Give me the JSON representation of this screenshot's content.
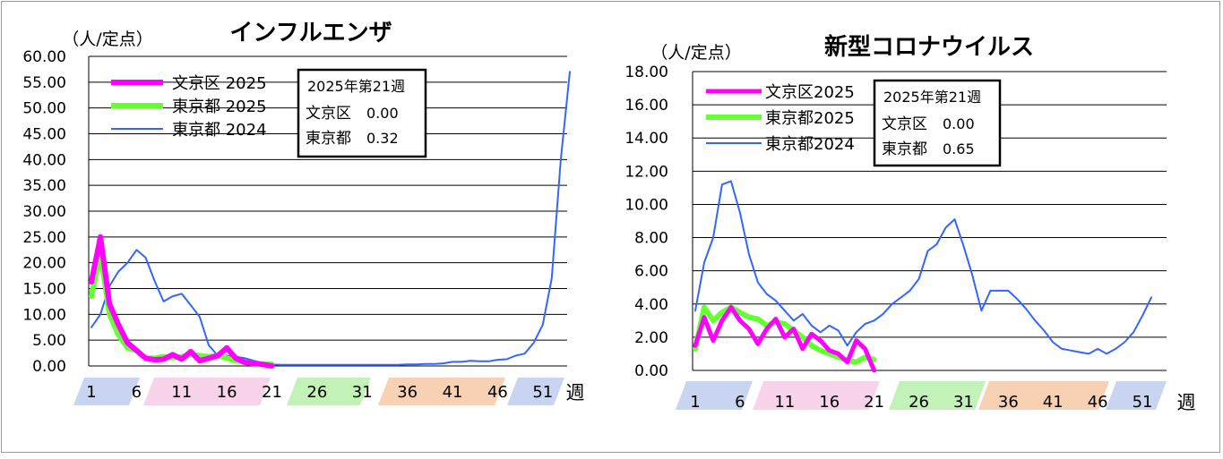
{
  "chart_data": [
    {
      "type": "line",
      "title": "インフルエンザ",
      "ylabel": "（人/定点）",
      "xlabel": "週",
      "ylim": [
        0,
        60
      ],
      "yticks": [
        "0.00",
        "5.00",
        "10.00",
        "15.00",
        "20.00",
        "25.00",
        "30.00",
        "35.00",
        "40.00",
        "45.00",
        "50.00",
        "55.00",
        "60.00"
      ],
      "xticks": [
        "1",
        "6",
        "11",
        "16",
        "21",
        "26",
        "31",
        "36",
        "41",
        "46",
        "51"
      ],
      "info_box": [
        "2025年第21週",
        "文京区",
        "0.00",
        "東京都",
        "0.32"
      ],
      "legend_position": "top-left",
      "colors": {
        "bunkyo": "#ff00ff",
        "tokyo2025": "#66ff33",
        "tokyo2024": "#3366ff"
      },
      "series": [
        {
          "name": "文京区 2025",
          "color": "#ff00ff",
          "values": [
            16.3,
            25.0,
            12.0,
            8.0,
            4.5,
            3.0,
            1.5,
            1.2,
            1.3,
            2.2,
            1.3,
            2.8,
            1.0,
            1.5,
            2.0,
            3.5,
            1.5,
            0.7,
            0.5,
            0.3,
            0.0
          ]
        },
        {
          "name": "東京都 2025",
          "color": "#66ff33",
          "values": [
            13.5,
            22.0,
            10.0,
            6.0,
            3.5,
            3.0,
            1.5,
            1.5,
            1.8,
            1.6,
            1.8,
            2.2,
            2.0,
            1.8,
            2.0,
            1.5,
            1.0,
            0.7,
            0.5,
            0.4,
            0.32
          ]
        },
        {
          "name": "東京都 2024",
          "color": "#3366ff",
          "values": [
            7.5,
            10.0,
            15.5,
            18.3,
            20.0,
            22.5,
            21.0,
            16.5,
            12.5,
            13.5,
            14.0,
            11.8,
            9.5,
            4.0,
            2.0,
            2.0,
            1.8,
            1.5,
            1.0,
            0.6,
            0.3,
            0.2,
            0.2,
            0.2,
            0.2,
            0.2,
            0.2,
            0.2,
            0.2,
            0.2,
            0.2,
            0.2,
            0.2,
            0.2,
            0.2,
            0.3,
            0.3,
            0.4,
            0.4,
            0.5,
            0.8,
            0.8,
            1.0,
            0.9,
            0.9,
            1.2,
            1.3,
            2.0,
            2.4,
            4.5,
            8.0,
            17.0,
            40.0,
            57.0
          ]
        }
      ]
    },
    {
      "type": "line",
      "title": "新型コロナウイルス",
      "ylabel": "（人/定点）",
      "xlabel": "週",
      "ylim": [
        0,
        18
      ],
      "yticks": [
        "0.00",
        "2.00",
        "4.00",
        "6.00",
        "8.00",
        "10.00",
        "12.00",
        "14.00",
        "16.00",
        "18.00"
      ],
      "xticks": [
        "1",
        "6",
        "11",
        "16",
        "21",
        "26",
        "31",
        "36",
        "41",
        "46",
        "51"
      ],
      "info_box": [
        "2025年第21週",
        "文京区",
        "0.00",
        "東京都",
        "0.65"
      ],
      "legend_position": "top-left",
      "colors": {
        "bunkyo": "#ff00ff",
        "tokyo2025": "#66ff33",
        "tokyo2024": "#3366ff"
      },
      "series": [
        {
          "name": "文京区2025",
          "color": "#ff00ff",
          "values": [
            1.5,
            3.2,
            1.8,
            3.0,
            3.8,
            3.0,
            2.5,
            1.6,
            2.5,
            3.1,
            2.0,
            2.5,
            1.3,
            2.2,
            1.8,
            1.2,
            1.0,
            0.5,
            1.8,
            1.3,
            0.0
          ]
        },
        {
          "name": "東京都2025",
          "color": "#66ff33",
          "values": [
            1.3,
            3.8,
            3.0,
            3.5,
            3.8,
            3.5,
            3.2,
            3.1,
            2.7,
            2.9,
            2.8,
            2.4,
            2.0,
            1.5,
            1.2,
            1.0,
            0.8,
            0.6,
            0.5,
            0.8,
            0.65
          ]
        },
        {
          "name": "東京都2024",
          "color": "#3366ff",
          "values": [
            3.6,
            6.5,
            8.0,
            11.2,
            11.4,
            9.5,
            7.0,
            5.3,
            4.6,
            4.2,
            3.6,
            3.0,
            3.4,
            2.7,
            2.3,
            2.7,
            2.4,
            1.5,
            2.3,
            2.8,
            3.0,
            3.4,
            4.0,
            4.4,
            4.8,
            5.5,
            7.2,
            7.6,
            8.6,
            9.1,
            7.5,
            5.7,
            3.6,
            4.8,
            4.8,
            4.8,
            4.3,
            3.7,
            3.0,
            2.4,
            1.7,
            1.3,
            1.2,
            1.1,
            1.0,
            1.3,
            1.0,
            1.3,
            1.7,
            2.3,
            3.3,
            4.4
          ]
        }
      ]
    }
  ]
}
